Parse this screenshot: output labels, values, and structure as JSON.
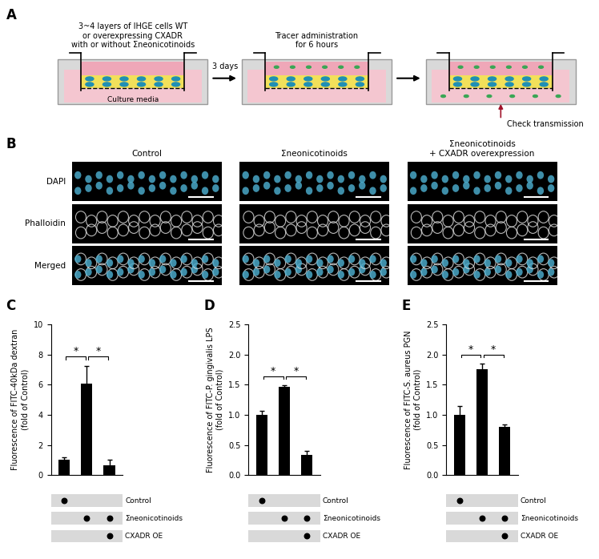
{
  "panel_labels": [
    "A",
    "B",
    "C",
    "D",
    "E"
  ],
  "diagram": {
    "step1_text": "3~4 layers of IHGE cells WT\nor overexpressing CXADR\nwith or without Σneonicotinoids",
    "medium_text": "Culture media",
    "arrow1_text": "3 days",
    "step2_text": "Tracer administration\nfor 6 hours",
    "step3_text": "Check transmission"
  },
  "images": {
    "columns": [
      "Control",
      "Σneonicotinoids",
      "Σneonicotinoids\n+ CXADR overexpression"
    ],
    "rows": [
      "DAPI",
      "Phalloidin",
      "Merged"
    ]
  },
  "chart_data": [
    {
      "type": "bar",
      "y_label": "Fluorescence of FITC-40kDa dextran\n(fold of Control)",
      "values": [
        1.0,
        6.05,
        0.65
      ],
      "errors": [
        0.2,
        1.2,
        0.35
      ],
      "color": "#000000",
      "ylim": [
        0,
        10
      ],
      "yticks": [
        0,
        2,
        4,
        6,
        8,
        10
      ],
      "significance": [
        {
          "between": [
            0,
            1
          ],
          "label": "*"
        },
        {
          "between": [
            1,
            2
          ],
          "label": "*"
        }
      ],
      "treatments": [
        {
          "name": "Control",
          "present": [
            true,
            false,
            false
          ]
        },
        {
          "name": "Σneonicotinoids",
          "present": [
            false,
            true,
            true
          ]
        },
        {
          "name": "CXADR OE",
          "present": [
            false,
            false,
            true
          ]
        }
      ]
    },
    {
      "type": "bar",
      "y_label": "Fluorescence of FITC-P. gingivalis LPS\n(fold of Control)",
      "values": [
        1.0,
        1.46,
        0.33
      ],
      "errors": [
        0.06,
        0.03,
        0.07
      ],
      "color": "#000000",
      "ylim": [
        0,
        2.5
      ],
      "yticks": [
        {
          "value": 0,
          "label": "0.0"
        },
        {
          "value": 0.5,
          "label": "0.5"
        },
        {
          "value": 1.0,
          "label": "1.0"
        },
        {
          "value": 1.5,
          "label": "1.5"
        },
        {
          "value": 2.0,
          "label": "2.0"
        },
        {
          "value": 2.5,
          "label": "2.5"
        }
      ],
      "significance": [
        {
          "between": [
            0,
            1
          ],
          "label": "*"
        },
        {
          "between": [
            1,
            2
          ],
          "label": "*"
        }
      ],
      "treatments": [
        {
          "name": "Control",
          "present": [
            true,
            false,
            false
          ]
        },
        {
          "name": "Σneonicotinoids",
          "present": [
            false,
            true,
            true
          ]
        },
        {
          "name": "CXADR OE",
          "present": [
            false,
            false,
            true
          ]
        }
      ]
    },
    {
      "type": "bar",
      "y_label": "Fluorescence of FITC-S. aureus PGN\n(fold of Control)",
      "values": [
        1.0,
        1.75,
        0.8
      ],
      "errors": [
        0.15,
        0.1,
        0.04
      ],
      "color": "#000000",
      "ylim": [
        0,
        2.5
      ],
      "yticks": [
        {
          "value": 0,
          "label": "0.0"
        },
        {
          "value": 0.5,
          "label": "0.5"
        },
        {
          "value": 1.0,
          "label": "1.0"
        },
        {
          "value": 1.5,
          "label": "1.5"
        },
        {
          "value": 2.0,
          "label": "2.0"
        },
        {
          "value": 2.5,
          "label": "2.5"
        }
      ],
      "significance": [
        {
          "between": [
            0,
            1
          ],
          "label": "*"
        },
        {
          "between": [
            1,
            2
          ],
          "label": "*"
        }
      ],
      "treatments": [
        {
          "name": "Control",
          "present": [
            true,
            false,
            false
          ]
        },
        {
          "name": "Σneonicotinoids",
          "present": [
            false,
            true,
            true
          ]
        },
        {
          "name": "CXADR OE",
          "present": [
            false,
            false,
            true
          ]
        }
      ]
    }
  ]
}
